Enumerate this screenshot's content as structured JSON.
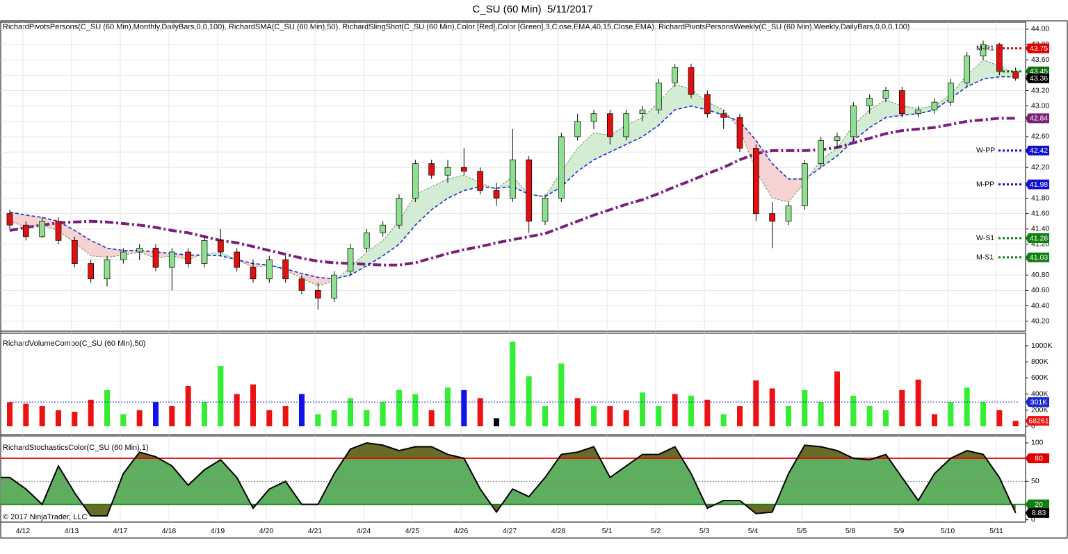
{
  "title": "C_SU (60 Min)  5/11/2017",
  "copyright": "© 2017 NinjaTrader, LLC",
  "chart_data": [
    {
      "type": "candlestick",
      "label": "RichardPivotsPersons(C_SU (60 Min),Monthly,DailyBars,0,0,100), RichardSMA(C_SU (60 Min),50), RichardSlingShot(C_SU (60 Min),Color [Red],Color [Green],3,Close,EMA,40,15,Close,EMA), RichardPivotsPersonsWeekly(C_SU (60 Min),Weekly,DailyBars,0,0,0,100)",
      "categories": [
        "4/12",
        null,
        null,
        "4/13",
        null,
        null,
        "4/17",
        null,
        null,
        "4/18",
        null,
        null,
        "4/19",
        null,
        null,
        "4/20",
        null,
        null,
        "4/21",
        null,
        null,
        "4/24",
        null,
        null,
        "4/25",
        null,
        null,
        "4/26",
        null,
        null,
        "4/27",
        null,
        null,
        "4/28",
        null,
        null,
        "5/1",
        null,
        null,
        "5/2",
        null,
        null,
        "5/3",
        null,
        null,
        "5/4",
        null,
        null,
        "5/5",
        null,
        null,
        "5/8",
        null,
        null,
        "5/9",
        null,
        null,
        "5/10",
        null,
        null,
        "5/11",
        null,
        null
      ],
      "ohlc": [
        [
          41.6,
          41.65,
          41.4,
          41.45
        ],
        [
          41.45,
          41.5,
          41.25,
          41.3
        ],
        [
          41.3,
          41.55,
          41.28,
          41.5
        ],
        [
          41.5,
          41.55,
          41.2,
          41.25
        ],
        [
          41.25,
          41.3,
          40.9,
          40.95
        ],
        [
          40.95,
          41.0,
          40.7,
          40.75
        ],
        [
          40.75,
          41.05,
          40.65,
          41.0
        ],
        [
          41.0,
          41.15,
          40.95,
          41.1
        ],
        [
          41.1,
          41.2,
          41.0,
          41.15
        ],
        [
          41.15,
          41.2,
          40.85,
          40.9
        ],
        [
          40.9,
          41.15,
          40.6,
          41.1
        ],
        [
          41.1,
          41.15,
          40.9,
          40.95
        ],
        [
          40.95,
          41.3,
          40.9,
          41.25
        ],
        [
          41.25,
          41.4,
          41.05,
          41.1
        ],
        [
          41.1,
          41.15,
          40.85,
          40.9
        ],
        [
          40.9,
          41.0,
          40.7,
          40.75
        ],
        [
          40.75,
          41.05,
          40.7,
          41.0
        ],
        [
          41.0,
          41.05,
          40.7,
          40.75
        ],
        [
          40.75,
          40.8,
          40.55,
          40.6
        ],
        [
          40.6,
          40.7,
          40.35,
          40.5
        ],
        [
          40.5,
          40.85,
          40.45,
          40.8
        ],
        [
          40.85,
          41.2,
          40.8,
          41.15
        ],
        [
          41.15,
          41.4,
          41.1,
          41.35
        ],
        [
          41.35,
          41.5,
          41.3,
          41.45
        ],
        [
          41.45,
          41.85,
          41.4,
          41.8
        ],
        [
          41.8,
          42.3,
          41.75,
          42.25
        ],
        [
          42.25,
          42.3,
          42.05,
          42.1
        ],
        [
          42.1,
          42.3,
          42.0,
          42.2
        ],
        [
          42.2,
          42.45,
          42.1,
          42.15
        ],
        [
          42.15,
          42.2,
          41.85,
          41.9
        ],
        [
          41.9,
          42.0,
          41.7,
          41.8
        ],
        [
          41.8,
          42.7,
          41.75,
          42.3
        ],
        [
          42.3,
          42.35,
          41.35,
          41.5
        ],
        [
          41.5,
          41.85,
          41.45,
          41.8
        ],
        [
          41.8,
          42.65,
          41.75,
          42.6
        ],
        [
          42.6,
          42.9,
          42.55,
          42.8
        ],
        [
          42.8,
          42.95,
          42.7,
          42.9
        ],
        [
          42.9,
          42.95,
          42.5,
          42.6
        ],
        [
          42.6,
          42.95,
          42.55,
          42.9
        ],
        [
          42.9,
          43.0,
          42.8,
          42.95
        ],
        [
          42.95,
          43.35,
          42.9,
          43.3
        ],
        [
          43.3,
          43.55,
          43.25,
          43.5
        ],
        [
          43.5,
          43.55,
          43.1,
          43.15
        ],
        [
          43.15,
          43.2,
          42.85,
          42.9
        ],
        [
          42.9,
          42.95,
          42.7,
          42.85
        ],
        [
          42.85,
          42.9,
          42.4,
          42.45
        ],
        [
          42.45,
          42.5,
          41.5,
          41.6
        ],
        [
          41.6,
          41.75,
          41.15,
          41.5
        ],
        [
          41.5,
          41.75,
          41.45,
          41.7
        ],
        [
          41.7,
          42.3,
          41.65,
          42.25
        ],
        [
          42.25,
          42.6,
          42.2,
          42.55
        ],
        [
          42.55,
          42.65,
          42.45,
          42.6
        ],
        [
          42.6,
          43.05,
          42.55,
          43.0
        ],
        [
          43.0,
          43.15,
          42.9,
          43.1
        ],
        [
          43.1,
          43.25,
          43.05,
          43.2
        ],
        [
          43.2,
          43.25,
          42.85,
          42.9
        ],
        [
          42.9,
          43.0,
          42.85,
          42.95
        ],
        [
          42.95,
          43.1,
          42.9,
          43.05
        ],
        [
          43.05,
          43.35,
          43.0,
          43.3
        ],
        [
          43.3,
          43.7,
          43.25,
          43.65
        ],
        [
          43.65,
          43.85,
          43.6,
          43.8
        ],
        [
          43.8,
          43.82,
          43.4,
          43.45
        ],
        [
          43.45,
          43.5,
          43.33,
          43.36
        ]
      ],
      "up_color": "#8fe08f",
      "down_color": "#e01010",
      "fast": {
        "color": "#3a8a3a",
        "values": [
          41.5,
          41.42,
          41.45,
          41.38,
          41.22,
          41.05,
          41.03,
          41.06,
          41.1,
          41.02,
          41.05,
          41.0,
          41.08,
          41.09,
          41.0,
          40.9,
          40.93,
          40.86,
          40.76,
          40.66,
          40.72,
          40.9,
          41.1,
          41.25,
          41.5,
          41.85,
          41.95,
          42.05,
          42.1,
          42.0,
          41.92,
          42.08,
          41.85,
          41.82,
          42.15,
          42.45,
          42.65,
          42.62,
          42.75,
          42.85,
          43.05,
          43.28,
          43.22,
          43.05,
          42.95,
          42.7,
          42.15,
          41.8,
          41.75,
          42.0,
          42.3,
          42.45,
          42.75,
          42.95,
          43.08,
          43.0,
          42.97,
          43.0,
          43.15,
          43.4,
          43.6,
          43.52,
          43.42
        ]
      },
      "slow": {
        "color": "#1a2ad0",
        "values": [
          41.62,
          41.58,
          41.55,
          41.5,
          41.38,
          41.25,
          41.15,
          41.12,
          41.12,
          41.1,
          41.08,
          41.06,
          41.06,
          41.05,
          41.0,
          40.95,
          40.93,
          40.88,
          40.82,
          40.77,
          40.75,
          40.8,
          40.92,
          41.05,
          41.2,
          41.45,
          41.65,
          41.8,
          41.9,
          41.95,
          41.93,
          41.95,
          41.85,
          41.82,
          41.95,
          42.15,
          42.3,
          42.4,
          42.5,
          42.6,
          42.75,
          42.95,
          43.0,
          42.95,
          42.88,
          42.8,
          42.55,
          42.25,
          42.05,
          42.05,
          42.2,
          42.35,
          42.55,
          42.72,
          42.85,
          42.88,
          42.9,
          42.95,
          43.1,
          43.25,
          43.35,
          43.38,
          43.38
        ]
      },
      "sma": {
        "color": "#7a1f7a",
        "values": [
          41.38,
          41.42,
          41.45,
          41.48,
          41.49,
          41.5,
          41.49,
          41.47,
          41.45,
          41.42,
          41.38,
          41.35,
          41.3,
          41.25,
          41.22,
          41.17,
          41.12,
          41.07,
          41.02,
          40.98,
          40.96,
          40.95,
          40.94,
          40.93,
          40.93,
          40.96,
          41.02,
          41.08,
          41.13,
          41.17,
          41.22,
          41.26,
          41.3,
          41.34,
          41.42,
          41.5,
          41.58,
          41.65,
          41.72,
          41.78,
          41.86,
          41.95,
          42.03,
          42.12,
          42.2,
          42.3,
          42.38,
          42.42,
          42.42,
          42.42,
          42.43,
          42.46,
          42.52,
          42.58,
          42.64,
          42.68,
          42.7,
          42.72,
          42.76,
          42.8,
          42.82,
          42.84,
          42.84
        ]
      },
      "up_fill": "#d4ecd4",
      "down_fill": "#f7d2d2",
      "levels": [
        {
          "name": "M-R1",
          "value": 43.75,
          "color": "#e00000"
        },
        {
          "value": 43.45,
          "color": "#107010"
        },
        {
          "name": "W-PP",
          "value": 42.42,
          "color": "#1010d0"
        },
        {
          "name": "M-PP",
          "value": 41.98,
          "color": "#1010d0"
        },
        {
          "name": "W-S1",
          "value": 41.28,
          "color": "#108010"
        },
        {
          "name": "M-S1",
          "value": 41.03,
          "color": "#108010"
        }
      ],
      "ylim": [
        40.07,
        44.09
      ],
      "yticks": [
        {
          "value": 40.2,
          "label": "40.20"
        },
        {
          "value": 40.4,
          "label": "40.40"
        },
        {
          "value": 40.6,
          "label": "40.60"
        },
        {
          "value": 40.8,
          "label": "40.80"
        },
        {
          "value": 41.0,
          "label": "41.00"
        },
        {
          "value": 41.2,
          "label": "41.20"
        },
        {
          "value": 41.4,
          "label": "41.40"
        },
        {
          "value": 41.6,
          "label": "41.60"
        },
        {
          "value": 41.8,
          "label": "41.80"
        },
        {
          "value": 42.0,
          "label": "42.00"
        },
        {
          "value": 42.2,
          "label": "42.20"
        },
        {
          "value": 42.4,
          "label": "42.40"
        },
        {
          "value": 42.6,
          "label": "42.60"
        },
        {
          "value": 42.8,
          "label": "42.80"
        },
        {
          "value": 43.0,
          "label": "43.00"
        },
        {
          "value": 43.2,
          "label": "43.20"
        },
        {
          "value": 43.4,
          "label": "43.40"
        },
        {
          "value": 43.6,
          "label": "43.60"
        },
        {
          "value": 43.8,
          "label": "43.80"
        },
        {
          "value": 44.0,
          "label": "44.00"
        }
      ],
      "grid": true
    },
    {
      "type": "bar",
      "label": "RichardVolumeCombo(C_SU (60 Min),50)",
      "values": [
        300000,
        280000,
        250000,
        200000,
        180000,
        330000,
        450000,
        150000,
        200000,
        300000,
        250000,
        500000,
        300000,
        750000,
        400000,
        520000,
        200000,
        250000,
        400000,
        150000,
        200000,
        350000,
        200000,
        300000,
        450000,
        400000,
        200000,
        480000,
        450000,
        350000,
        100000,
        1050000,
        620000,
        250000,
        780000,
        350000,
        250000,
        250000,
        200000,
        420000,
        250000,
        400000,
        380000,
        330000,
        150000,
        250000,
        570000,
        470000,
        250000,
        450000,
        300000,
        680000,
        380000,
        250000,
        200000,
        450000,
        580000,
        150000,
        300000,
        480000,
        300000,
        200000,
        68261
      ],
      "colors": [
        "#ee1111",
        "#ee1111",
        "#ee1111",
        "#ee1111",
        "#ee1111",
        "#ee1111",
        "#33ee33",
        "#33ee33",
        "#ee1111",
        "#1111ee",
        "#ee1111",
        "#ee1111",
        "#33ee33",
        "#33ee33",
        "#ee1111",
        "#ee1111",
        "#ee1111",
        "#ee1111",
        "#1111ee",
        "#33ee33",
        "#33ee33",
        "#33ee33",
        "#33ee33",
        "#33ee33",
        "#33ee33",
        "#33ee33",
        "#ee1111",
        "#33ee33",
        "#1111ee",
        "#ee1111",
        "#000000",
        "#33ee33",
        "#33ee33",
        "#33ee33",
        "#33ee33",
        "#ee1111",
        "#33ee33",
        "#ee1111",
        "#ee1111",
        "#33ee33",
        "#33ee33",
        "#ee1111",
        "#33ee33",
        "#ee1111",
        "#33ee33",
        "#ee1111",
        "#ee1111",
        "#ee1111",
        "#33ee33",
        "#33ee33",
        "#33ee33",
        "#ee1111",
        "#33ee33",
        "#33ee33",
        "#33ee33",
        "#ee1111",
        "#ee1111",
        "#ee1111",
        "#33ee33",
        "#33ee33",
        "#33ee33",
        "#ee1111",
        "#ee1111"
      ],
      "avg": {
        "value": 301000,
        "label": "301K",
        "color": "#1a2ad0"
      },
      "ylim": [
        -103000,
        1155000
      ],
      "yticks": [
        0,
        {
          "value": 200000,
          "label": "200K"
        },
        {
          "value": 400000,
          "label": "400K"
        },
        {
          "value": 600000,
          "label": "600K"
        },
        {
          "value": 800000,
          "label": "800K"
        },
        {
          "value": 1000000,
          "label": "1000K"
        }
      ]
    },
    {
      "type": "line",
      "label": "RichardStochasticsColor(C_SU (60 Min),1)",
      "values": [
        55,
        40,
        20,
        70,
        35,
        5,
        5,
        60,
        88,
        82,
        70,
        45,
        65,
        78,
        55,
        15,
        40,
        50,
        20,
        20,
        60,
        92,
        100,
        97,
        90,
        95,
        95,
        85,
        80,
        40,
        10,
        40,
        30,
        55,
        85,
        88,
        95,
        55,
        70,
        85,
        85,
        95,
        60,
        15,
        25,
        25,
        8,
        10,
        60,
        97,
        95,
        90,
        80,
        78,
        85,
        55,
        25,
        60,
        80,
        90,
        85,
        55,
        8.83
      ],
      "fill": "#5fae5f",
      "extreme_fill": "#6b6b28",
      "levels": [
        {
          "value": 80,
          "color": "#e00000"
        },
        {
          "value": 20,
          "color": "#108010"
        }
      ],
      "ylim": [
        -3,
        109
      ],
      "yticks": [
        0,
        50,
        100
      ]
    }
  ]
}
